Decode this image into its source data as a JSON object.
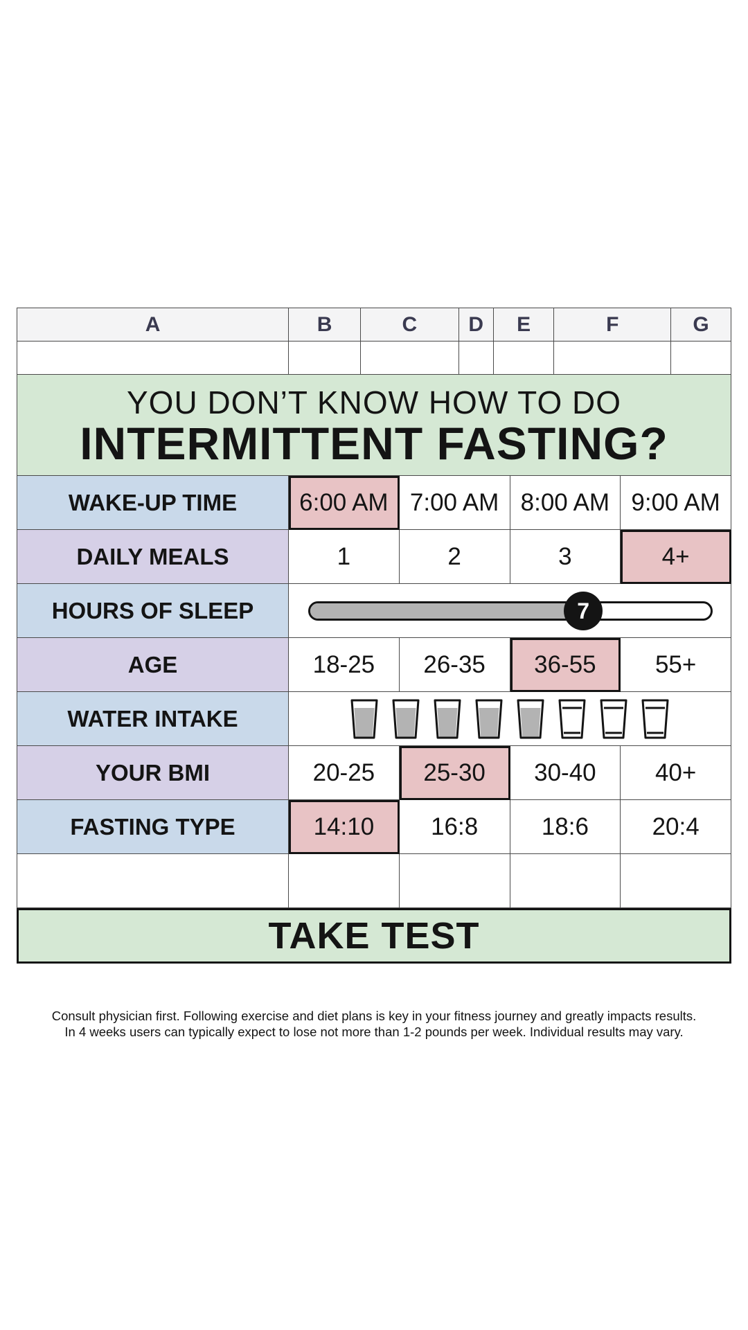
{
  "columns": [
    "A",
    "B",
    "C",
    "D",
    "E",
    "F",
    "G"
  ],
  "title": {
    "line1": "YOU DON’T KNOW HOW TO DO",
    "line2": "INTERMITTENT FASTING?"
  },
  "rows": {
    "wake_up": {
      "label": "WAKE-UP TIME",
      "options": [
        "6:00 AM",
        "7:00 AM",
        "8:00 AM",
        "9:00 AM"
      ],
      "selected": "6:00 AM"
    },
    "meals": {
      "label": "DAILY MEALS",
      "options": [
        "1",
        "2",
        "3",
        "4+"
      ],
      "selected": "4+"
    },
    "sleep": {
      "label": "HOURS OF SLEEP",
      "value": "7",
      "fraction": 0.68
    },
    "age": {
      "label": "AGE",
      "options": [
        "18-25",
        "26-35",
        "36-55",
        "55+"
      ],
      "selected": "36-55"
    },
    "water": {
      "label": "WATER INTAKE",
      "total_glasses": 8,
      "filled_glasses": 5
    },
    "bmi": {
      "label": "YOUR BMI",
      "options": [
        "20-25",
        "25-30",
        "30-40",
        "40+"
      ],
      "selected": "25-30"
    },
    "fasting": {
      "label": "FASTING TYPE",
      "options": [
        "14:10",
        "16:8",
        "18:6",
        "20:4"
      ],
      "selected": "14:10"
    }
  },
  "take_test_label": "TAKE TEST",
  "disclaimer": {
    "line1": "Consult physician first. Following exercise and diet plans is key in your fitness journey and greatly impacts results.",
    "line2": "In 4 weeks users can typically expect to lose not more than 1-2 pounds per week. Individual results may vary."
  },
  "colors": {
    "title_bg": "#d5e8d4",
    "label_blue": "#c9d9ea",
    "label_purple": "#d6d0e7",
    "selected": "#e8c3c5",
    "slider_fill": "#b3b3b3"
  }
}
